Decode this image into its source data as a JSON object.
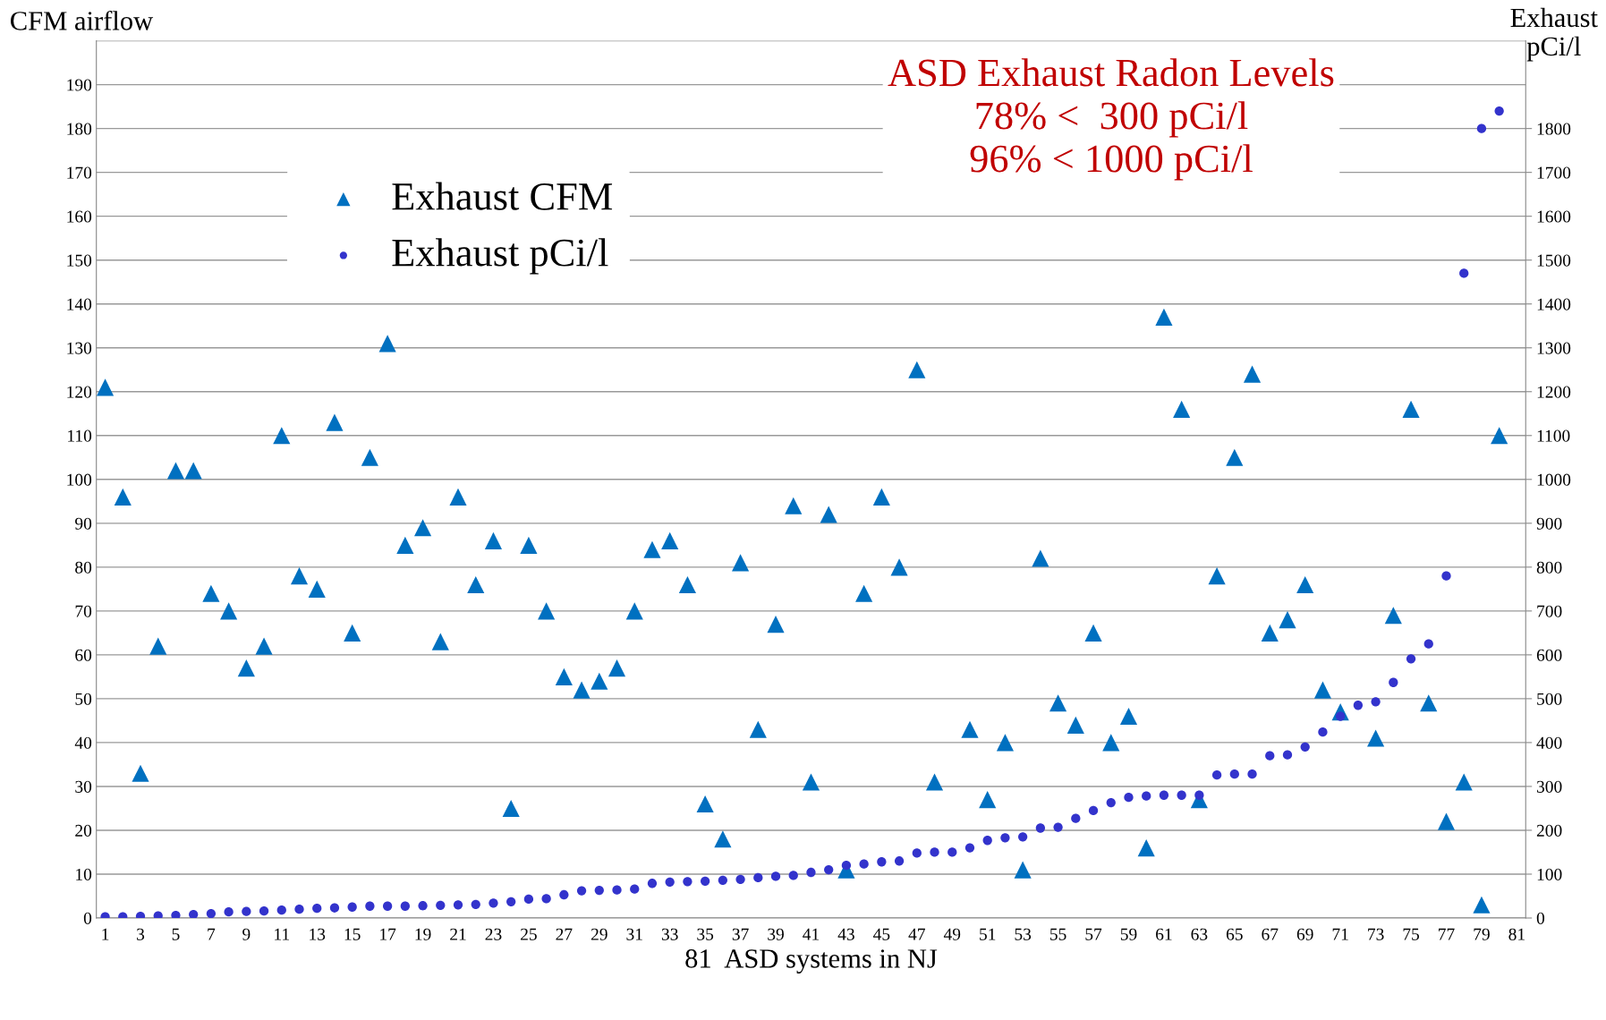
{
  "chart_data": {
    "type": "scatter",
    "title": "ASD Exhaust Radon Levels",
    "subtitle": "78% <  300 pCi/l\n96% < 1000 pCi/l",
    "xlabel": "81  ASD systems in NJ",
    "ylabel": "CFM airflow",
    "y2label": "Exhaust\npCi/l",
    "categories": [
      "1",
      null,
      "3",
      null,
      "5",
      null,
      "7",
      null,
      "9",
      null,
      "11",
      null,
      "13",
      null,
      "15",
      null,
      "17",
      null,
      "19",
      null,
      "21",
      null,
      "23",
      null,
      "25",
      null,
      "27",
      null,
      "29",
      null,
      "31",
      null,
      "33",
      null,
      "35",
      null,
      "37",
      null,
      "39",
      null,
      "41",
      null,
      "43",
      null,
      "45",
      null,
      "47",
      null,
      "49",
      null,
      "51",
      null,
      "53",
      null,
      "55",
      null,
      "57",
      null,
      "59",
      null,
      "61",
      null,
      "63",
      null,
      "65",
      null,
      "67",
      null,
      "69",
      null,
      "71",
      null,
      "73",
      null,
      "75",
      null,
      "77",
      null,
      "79",
      null,
      "81"
    ],
    "series": [
      {
        "name": "Exhaust CFM",
        "color": "#0070c0",
        "marker": "triangle",
        "values": [
          121,
          96,
          33,
          62,
          102,
          102,
          74,
          70,
          57,
          62,
          110,
          78,
          75,
          113,
          65,
          105,
          131,
          85,
          89,
          63,
          96,
          76,
          86,
          25,
          85,
          70,
          55,
          52,
          54,
          57,
          70,
          84,
          86,
          76,
          26,
          18,
          81,
          43,
          67,
          94,
          31,
          92,
          11,
          74,
          96,
          80,
          125,
          31,
          null,
          43,
          27,
          40,
          11,
          82,
          49,
          44,
          65,
          40,
          46,
          16,
          137,
          116,
          27,
          78,
          105,
          124,
          65,
          68,
          76,
          52,
          47,
          null,
          41,
          69,
          116,
          49,
          22,
          31,
          3,
          110,
          null
        ]
      },
      {
        "name": "Exhaust pCi/l",
        "color": "#3333cc",
        "marker": "circle",
        "axis": "y2",
        "values": [
          3,
          3,
          4,
          5,
          6,
          8,
          10,
          14,
          15,
          16,
          18,
          20,
          22,
          23,
          25,
          27,
          27,
          27,
          28,
          29,
          30,
          31,
          34,
          37,
          43,
          44,
          53,
          62,
          63,
          64,
          66,
          79,
          82,
          83,
          84,
          86,
          88,
          92,
          95,
          97,
          104,
          110,
          120,
          123,
          128,
          130,
          148,
          150,
          150,
          160,
          177,
          183,
          185,
          205,
          207,
          227,
          245,
          263,
          275,
          278,
          280,
          280,
          280,
          326,
          328,
          328,
          370,
          372,
          390,
          424,
          460,
          485,
          493,
          537,
          591,
          625,
          780,
          1470,
          1800,
          1840,
          null
        ]
      }
    ],
    "ylim": [
      0,
      200
    ],
    "yticks": [
      0,
      10,
      20,
      30,
      40,
      50,
      60,
      70,
      80,
      90,
      100,
      110,
      120,
      130,
      140,
      150,
      160,
      170,
      180,
      190,
      {
        "value": 200,
        "label": null
      }
    ],
    "y2lim": [
      0,
      2000
    ],
    "y2ticks": [
      0,
      100,
      200,
      300,
      400,
      500,
      600,
      700,
      800,
      900,
      1000,
      1100,
      1200,
      1300,
      1400,
      1500,
      1600,
      1700,
      1800
    ],
    "grid": "y",
    "legend": "top left"
  }
}
